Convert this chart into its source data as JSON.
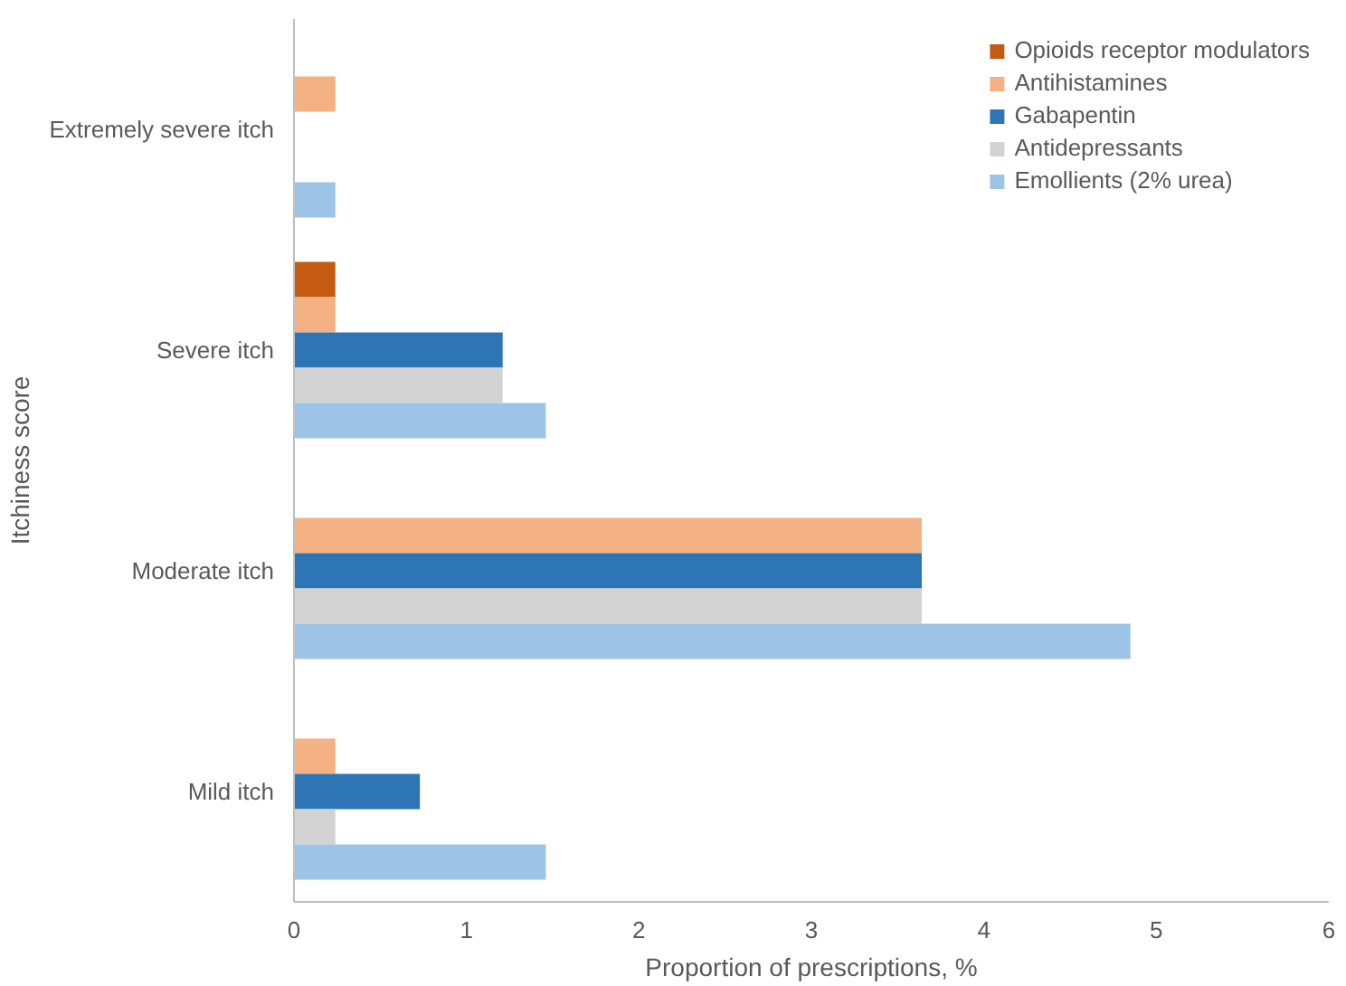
{
  "chart_data": {
    "type": "bar",
    "orientation": "horizontal",
    "xlabel": "Proportion of prescriptions, %",
    "ylabel": "Itchiness score",
    "categories": [
      "Extremely severe itch",
      "Severe itch",
      "Moderate itch",
      "Mild itch"
    ],
    "series": [
      {
        "name": "Opioids receptor modulators",
        "color": "#c55a11",
        "values": [
          null,
          0.24,
          null,
          null
        ]
      },
      {
        "name": "Antihistamines",
        "color": "#f4b183",
        "values": [
          0.24,
          0.24,
          3.64,
          0.24
        ]
      },
      {
        "name": "Gabapentin",
        "color": "#2e75b6",
        "values": [
          null,
          1.21,
          3.64,
          0.73
        ]
      },
      {
        "name": "Antidepressants",
        "color": "#d3d3d3",
        "values": [
          null,
          1.21,
          3.64,
          0.24
        ]
      },
      {
        "name": "Emollients (2% urea)",
        "color": "#9dc3e6",
        "values": [
          0.24,
          1.46,
          4.85,
          1.46
        ]
      }
    ],
    "xlim": [
      0,
      6
    ],
    "xticks": [
      0,
      1,
      2,
      3,
      4,
      5,
      6
    ],
    "grid": false,
    "legend": "top right"
  }
}
